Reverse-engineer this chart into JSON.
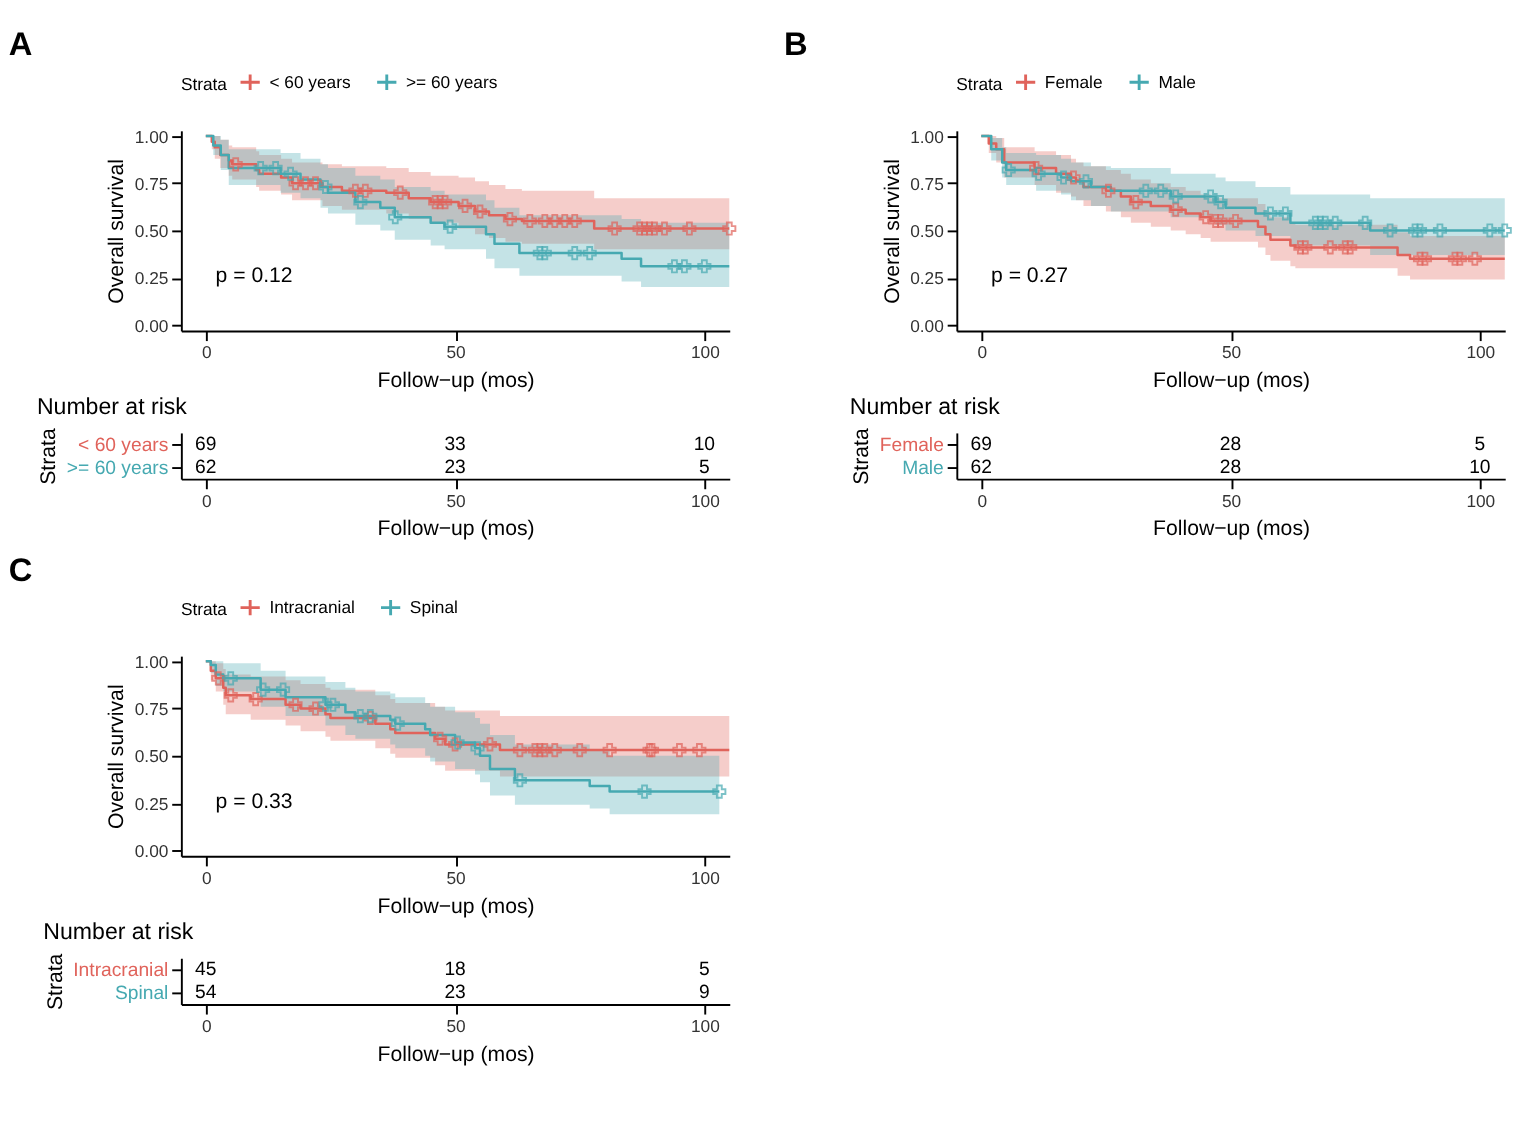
{
  "chart_data": [
    {
      "type": "step",
      "title": "A",
      "xlabel": "Follow−up (mos)",
      "ylabel": "Overall survival",
      "legend_title": "Strata",
      "legend": "top",
      "grid": false,
      "xlim": [
        -5,
        105
      ],
      "xticks": [
        0,
        50,
        100
      ],
      "ylim": [
        -0.03,
        1.03
      ],
      "yticks": [
        {
          "value": 0,
          "label": "0.00"
        },
        {
          "value": 0.25,
          "label": "0.25"
        },
        {
          "value": 0.5,
          "label": "0.50"
        },
        {
          "value": 0.75,
          "label": "0.75"
        },
        {
          "value": 1,
          "label": "1.00"
        }
      ],
      "annotations": [
        "p = 0.12"
      ],
      "series": [
        {
          "name": "< 60 years",
          "color": "#e0635b",
          "x": [
            0,
            1.2,
            1.8,
            2.9,
            4.6,
            5.3,
            10.1,
            10.7,
            15.1,
            17.3,
            23.4,
            27.3,
            36.2,
            40.7,
            45.1,
            50.7,
            54,
            56.8,
            60.1,
            63.4,
            77.9,
            105
          ],
          "values": [
            1,
            0.97,
            0.94,
            0.9,
            0.87,
            0.85,
            0.82,
            0.8,
            0.78,
            0.75,
            0.73,
            0.71,
            0.7,
            0.67,
            0.65,
            0.63,
            0.6,
            0.58,
            0.56,
            0.55,
            0.51,
            0.51
          ],
          "upper": [
            1,
            1,
            1,
            0.98,
            0.95,
            0.94,
            0.92,
            0.9,
            0.88,
            0.86,
            0.85,
            0.84,
            0.83,
            0.81,
            0.79,
            0.78,
            0.76,
            0.74,
            0.72,
            0.71,
            0.67,
            0.67
          ],
          "lower": [
            1,
            0.93,
            0.88,
            0.83,
            0.79,
            0.77,
            0.73,
            0.71,
            0.69,
            0.66,
            0.63,
            0.61,
            0.59,
            0.56,
            0.54,
            0.51,
            0.48,
            0.46,
            0.44,
            0.43,
            0.4,
            0.4
          ]
        },
        {
          "name": ">= 60 years",
          "color": "#46a9b1",
          "x": [
            0,
            1.5,
            3,
            4.6,
            15,
            19,
            23,
            24.5,
            30,
            35,
            37.9,
            45.1,
            47.9,
            56.2,
            57.9,
            62.9,
            83.4,
            87.3,
            105
          ],
          "values": [
            1,
            0.95,
            0.9,
            0.83,
            0.8,
            0.77,
            0.73,
            0.7,
            0.65,
            0.62,
            0.57,
            0.54,
            0.52,
            0.48,
            0.43,
            0.38,
            0.35,
            0.31,
            0.31
          ],
          "upper": [
            1,
            1,
            0.98,
            0.93,
            0.91,
            0.88,
            0.85,
            0.83,
            0.79,
            0.77,
            0.73,
            0.71,
            0.69,
            0.66,
            0.62,
            0.58,
            0.56,
            0.54,
            0.54
          ],
          "lower": [
            1,
            0.9,
            0.82,
            0.74,
            0.7,
            0.67,
            0.62,
            0.59,
            0.53,
            0.5,
            0.45,
            0.42,
            0.4,
            0.35,
            0.3,
            0.26,
            0.23,
            0.2,
            0.2
          ]
        },
        {
          "type": "scatter",
          "marker": "cross",
          "color": "#e0635b",
          "x": [
            6,
            18,
            20,
            22,
            30,
            32,
            39,
            46,
            47,
            48,
            52,
            55,
            61,
            65,
            68,
            70,
            72,
            74,
            82,
            87,
            88,
            89,
            90,
            92,
            97,
            105
          ],
          "values": [
            0.85,
            0.75,
            0.75,
            0.75,
            0.71,
            0.71,
            0.7,
            0.65,
            0.65,
            0.65,
            0.63,
            0.6,
            0.56,
            0.55,
            0.55,
            0.55,
            0.55,
            0.55,
            0.51,
            0.51,
            0.51,
            0.51,
            0.51,
            0.51,
            0.51,
            0.51
          ]
        },
        {
          "type": "scatter",
          "marker": "cross",
          "color": "#46a9b1",
          "x": [
            11,
            14,
            17,
            24,
            31,
            38,
            49,
            67,
            68,
            74,
            77,
            94,
            96,
            100
          ],
          "values": [
            0.83,
            0.83,
            0.8,
            0.73,
            0.65,
            0.57,
            0.52,
            0.38,
            0.38,
            0.38,
            0.38,
            0.31,
            0.31,
            0.31
          ]
        }
      ]
    },
    {
      "type": "heatmap",
      "title": "Number at risk",
      "xlabel": "Follow−up (mos)",
      "ylabel": "Strata",
      "categories": [
        "0",
        "50",
        "100"
      ],
      "y_categories": [
        "< 60 years",
        ">= 60 years"
      ],
      "colors": [
        "#e0635b",
        "#46a9b1"
      ],
      "cells": [
        [
          69,
          33,
          10
        ],
        [
          62,
          23,
          5
        ]
      ],
      "data_labels": true
    },
    {
      "type": "step",
      "title": "B",
      "xlabel": "Follow−up (mos)",
      "ylabel": "Overall survival",
      "legend_title": "Strata",
      "legend": "top",
      "grid": false,
      "xlim": [
        -5,
        105
      ],
      "xticks": [
        0,
        50,
        100
      ],
      "ylim": [
        -0.03,
        1.03
      ],
      "yticks": [
        {
          "value": 0,
          "label": "0.00"
        },
        {
          "value": 0.25,
          "label": "0.25"
        },
        {
          "value": 0.5,
          "label": "0.50"
        },
        {
          "value": 0.75,
          "label": "0.75"
        },
        {
          "value": 1,
          "label": "1.00"
        }
      ],
      "annotations": [
        "p = 0.27"
      ],
      "series": [
        {
          "name": "Female",
          "color": "#e0635b",
          "x": [
            0,
            1.5,
            3,
            4.6,
            10.7,
            15,
            18,
            19,
            20.5,
            25,
            28,
            30,
            34,
            38,
            41,
            44,
            46,
            55.5,
            57,
            58,
            62,
            63,
            83.5,
            86,
            105
          ],
          "values": [
            1,
            0.96,
            0.93,
            0.86,
            0.83,
            0.8,
            0.78,
            0.76,
            0.73,
            0.71,
            0.68,
            0.65,
            0.63,
            0.61,
            0.59,
            0.57,
            0.55,
            0.52,
            0.48,
            0.45,
            0.42,
            0.41,
            0.37,
            0.35,
            0.35
          ],
          "upper": [
            1,
            1,
            0.99,
            0.94,
            0.92,
            0.9,
            0.88,
            0.86,
            0.84,
            0.82,
            0.8,
            0.77,
            0.75,
            0.73,
            0.71,
            0.69,
            0.67,
            0.64,
            0.6,
            0.57,
            0.54,
            0.53,
            0.49,
            0.47,
            0.47
          ],
          "lower": [
            1,
            0.91,
            0.86,
            0.78,
            0.74,
            0.7,
            0.68,
            0.66,
            0.63,
            0.6,
            0.57,
            0.54,
            0.52,
            0.5,
            0.48,
            0.46,
            0.44,
            0.41,
            0.37,
            0.34,
            0.31,
            0.3,
            0.26,
            0.24,
            0.24
          ]
        },
        {
          "name": "Male",
          "color": "#46a9b1",
          "x": [
            0,
            2,
            4.2,
            5,
            11,
            16,
            18,
            22,
            26,
            38,
            47,
            49,
            55,
            62,
            78,
            105
          ],
          "values": [
            1,
            0.93,
            0.86,
            0.82,
            0.8,
            0.78,
            0.76,
            0.73,
            0.71,
            0.68,
            0.65,
            0.62,
            0.59,
            0.54,
            0.5,
            0.5
          ],
          "upper": [
            1,
            0.99,
            0.94,
            0.91,
            0.9,
            0.88,
            0.86,
            0.84,
            0.83,
            0.8,
            0.78,
            0.76,
            0.73,
            0.69,
            0.67,
            0.67
          ],
          "lower": [
            1,
            0.87,
            0.78,
            0.74,
            0.71,
            0.69,
            0.66,
            0.63,
            0.6,
            0.57,
            0.53,
            0.5,
            0.47,
            0.42,
            0.37,
            0.37
          ]
        },
        {
          "type": "scatter",
          "marker": "cross",
          "color": "#e0635b",
          "x": [
            11,
            18.5,
            25.5,
            31,
            39,
            45,
            47,
            48,
            51,
            64,
            65,
            70,
            73,
            74,
            88,
            89,
            95,
            96,
            99
          ],
          "values": [
            0.83,
            0.78,
            0.71,
            0.65,
            0.61,
            0.57,
            0.55,
            0.55,
            0.55,
            0.41,
            0.41,
            0.41,
            0.41,
            0.41,
            0.35,
            0.35,
            0.35,
            0.35,
            0.35
          ]
        },
        {
          "type": "scatter",
          "marker": "cross",
          "color": "#46a9b1",
          "x": [
            5.5,
            11.5,
            16.5,
            21,
            33,
            36,
            39,
            46,
            48,
            58,
            61,
            67,
            68,
            69,
            71,
            77,
            82,
            87,
            88,
            92,
            102,
            105
          ],
          "values": [
            0.82,
            0.8,
            0.78,
            0.76,
            0.71,
            0.71,
            0.68,
            0.68,
            0.65,
            0.59,
            0.59,
            0.54,
            0.54,
            0.54,
            0.54,
            0.54,
            0.5,
            0.5,
            0.5,
            0.5,
            0.5,
            0.5
          ]
        }
      ]
    },
    {
      "type": "heatmap",
      "title": "Number at risk",
      "xlabel": "Follow−up (mos)",
      "ylabel": "Strata",
      "categories": [
        "0",
        "50",
        "100"
      ],
      "y_categories": [
        "Female",
        "Male"
      ],
      "colors": [
        "#e0635b",
        "#46a9b1"
      ],
      "cells": [
        [
          69,
          28,
          5
        ],
        [
          62,
          28,
          10
        ]
      ],
      "data_labels": true
    },
    {
      "type": "step",
      "title": "C",
      "xlabel": "Follow−up (mos)",
      "ylabel": "Overall survival",
      "legend_title": "Strata",
      "legend": "top",
      "grid": false,
      "xlim": [
        -5,
        105
      ],
      "xticks": [
        0,
        50,
        100
      ],
      "ylim": [
        -0.03,
        1.03
      ],
      "yticks": [
        {
          "value": 0,
          "label": "0.00"
        },
        {
          "value": 0.25,
          "label": "0.25"
        },
        {
          "value": 0.5,
          "label": "0.50"
        },
        {
          "value": 0.75,
          "label": "0.75"
        },
        {
          "value": 1,
          "label": "1.00"
        }
      ],
      "annotations": [
        "p = 0.33"
      ],
      "series": [
        {
          "name": "Intracranial",
          "color": "#e0635b",
          "x": [
            0,
            1,
            2,
            3.5,
            4,
            9,
            16,
            19,
            24,
            25,
            34,
            37,
            38,
            46,
            48,
            59,
            105
          ],
          "values": [
            1,
            0.95,
            0.91,
            0.86,
            0.82,
            0.8,
            0.77,
            0.75,
            0.72,
            0.7,
            0.67,
            0.64,
            0.62,
            0.59,
            0.56,
            0.53,
            0.53
          ],
          "upper": [
            1,
            1,
            0.99,
            0.96,
            0.93,
            0.92,
            0.9,
            0.88,
            0.86,
            0.85,
            0.82,
            0.8,
            0.78,
            0.76,
            0.74,
            0.71,
            0.71
          ],
          "lower": [
            1,
            0.9,
            0.84,
            0.77,
            0.72,
            0.69,
            0.66,
            0.63,
            0.6,
            0.58,
            0.54,
            0.51,
            0.49,
            0.45,
            0.42,
            0.39,
            0.39
          ]
        },
        {
          "name": "Spinal",
          "color": "#46a9b1",
          "x": [
            0,
            1,
            2,
            3.5,
            11,
            16,
            24,
            28,
            30,
            37,
            38,
            44,
            45,
            50,
            54,
            55,
            57,
            62,
            77,
            81,
            103
          ],
          "values": [
            1,
            0.98,
            0.93,
            0.91,
            0.85,
            0.81,
            0.77,
            0.73,
            0.71,
            0.69,
            0.67,
            0.64,
            0.61,
            0.57,
            0.54,
            0.5,
            0.43,
            0.37,
            0.34,
            0.31,
            0.31
          ],
          "upper": [
            1,
            1,
            1,
            0.99,
            0.95,
            0.92,
            0.89,
            0.86,
            0.84,
            0.83,
            0.81,
            0.78,
            0.76,
            0.73,
            0.7,
            0.67,
            0.61,
            0.56,
            0.53,
            0.5,
            0.5
          ],
          "lower": [
            1,
            0.94,
            0.87,
            0.84,
            0.76,
            0.71,
            0.66,
            0.61,
            0.59,
            0.56,
            0.54,
            0.5,
            0.47,
            0.43,
            0.4,
            0.36,
            0.29,
            0.24,
            0.22,
            0.19,
            0.19
          ]
        },
        {
          "type": "scatter",
          "marker": "cross",
          "color": "#e0635b",
          "x": [
            2.5,
            5,
            10,
            18,
            22,
            33,
            47,
            50,
            57,
            63,
            66,
            67,
            68,
            70,
            75,
            81,
            89,
            89.5,
            95,
            99
          ],
          "values": [
            0.91,
            0.82,
            0.8,
            0.77,
            0.75,
            0.7,
            0.59,
            0.56,
            0.56,
            0.53,
            0.53,
            0.53,
            0.53,
            0.53,
            0.53,
            0.53,
            0.53,
            0.53,
            0.53,
            0.53
          ]
        },
        {
          "type": "scatter",
          "marker": "cross",
          "color": "#46a9b1",
          "x": [
            5,
            11.5,
            15.5,
            24,
            25.5,
            31,
            33,
            38.5,
            50.5,
            54.5,
            63,
            88,
            103
          ],
          "values": [
            0.91,
            0.85,
            0.85,
            0.77,
            0.77,
            0.71,
            0.71,
            0.67,
            0.57,
            0.54,
            0.37,
            0.31,
            0.31
          ]
        }
      ]
    },
    {
      "type": "heatmap",
      "title": "Number at risk",
      "xlabel": "Follow−up (mos)",
      "ylabel": "Strata",
      "categories": [
        "0",
        "50",
        "100"
      ],
      "y_categories": [
        "Intracranial",
        "Spinal"
      ],
      "colors": [
        "#e0635b",
        "#46a9b1"
      ],
      "cells": [
        [
          45,
          18,
          5
        ],
        [
          54,
          23,
          9
        ]
      ],
      "data_labels": true
    }
  ]
}
